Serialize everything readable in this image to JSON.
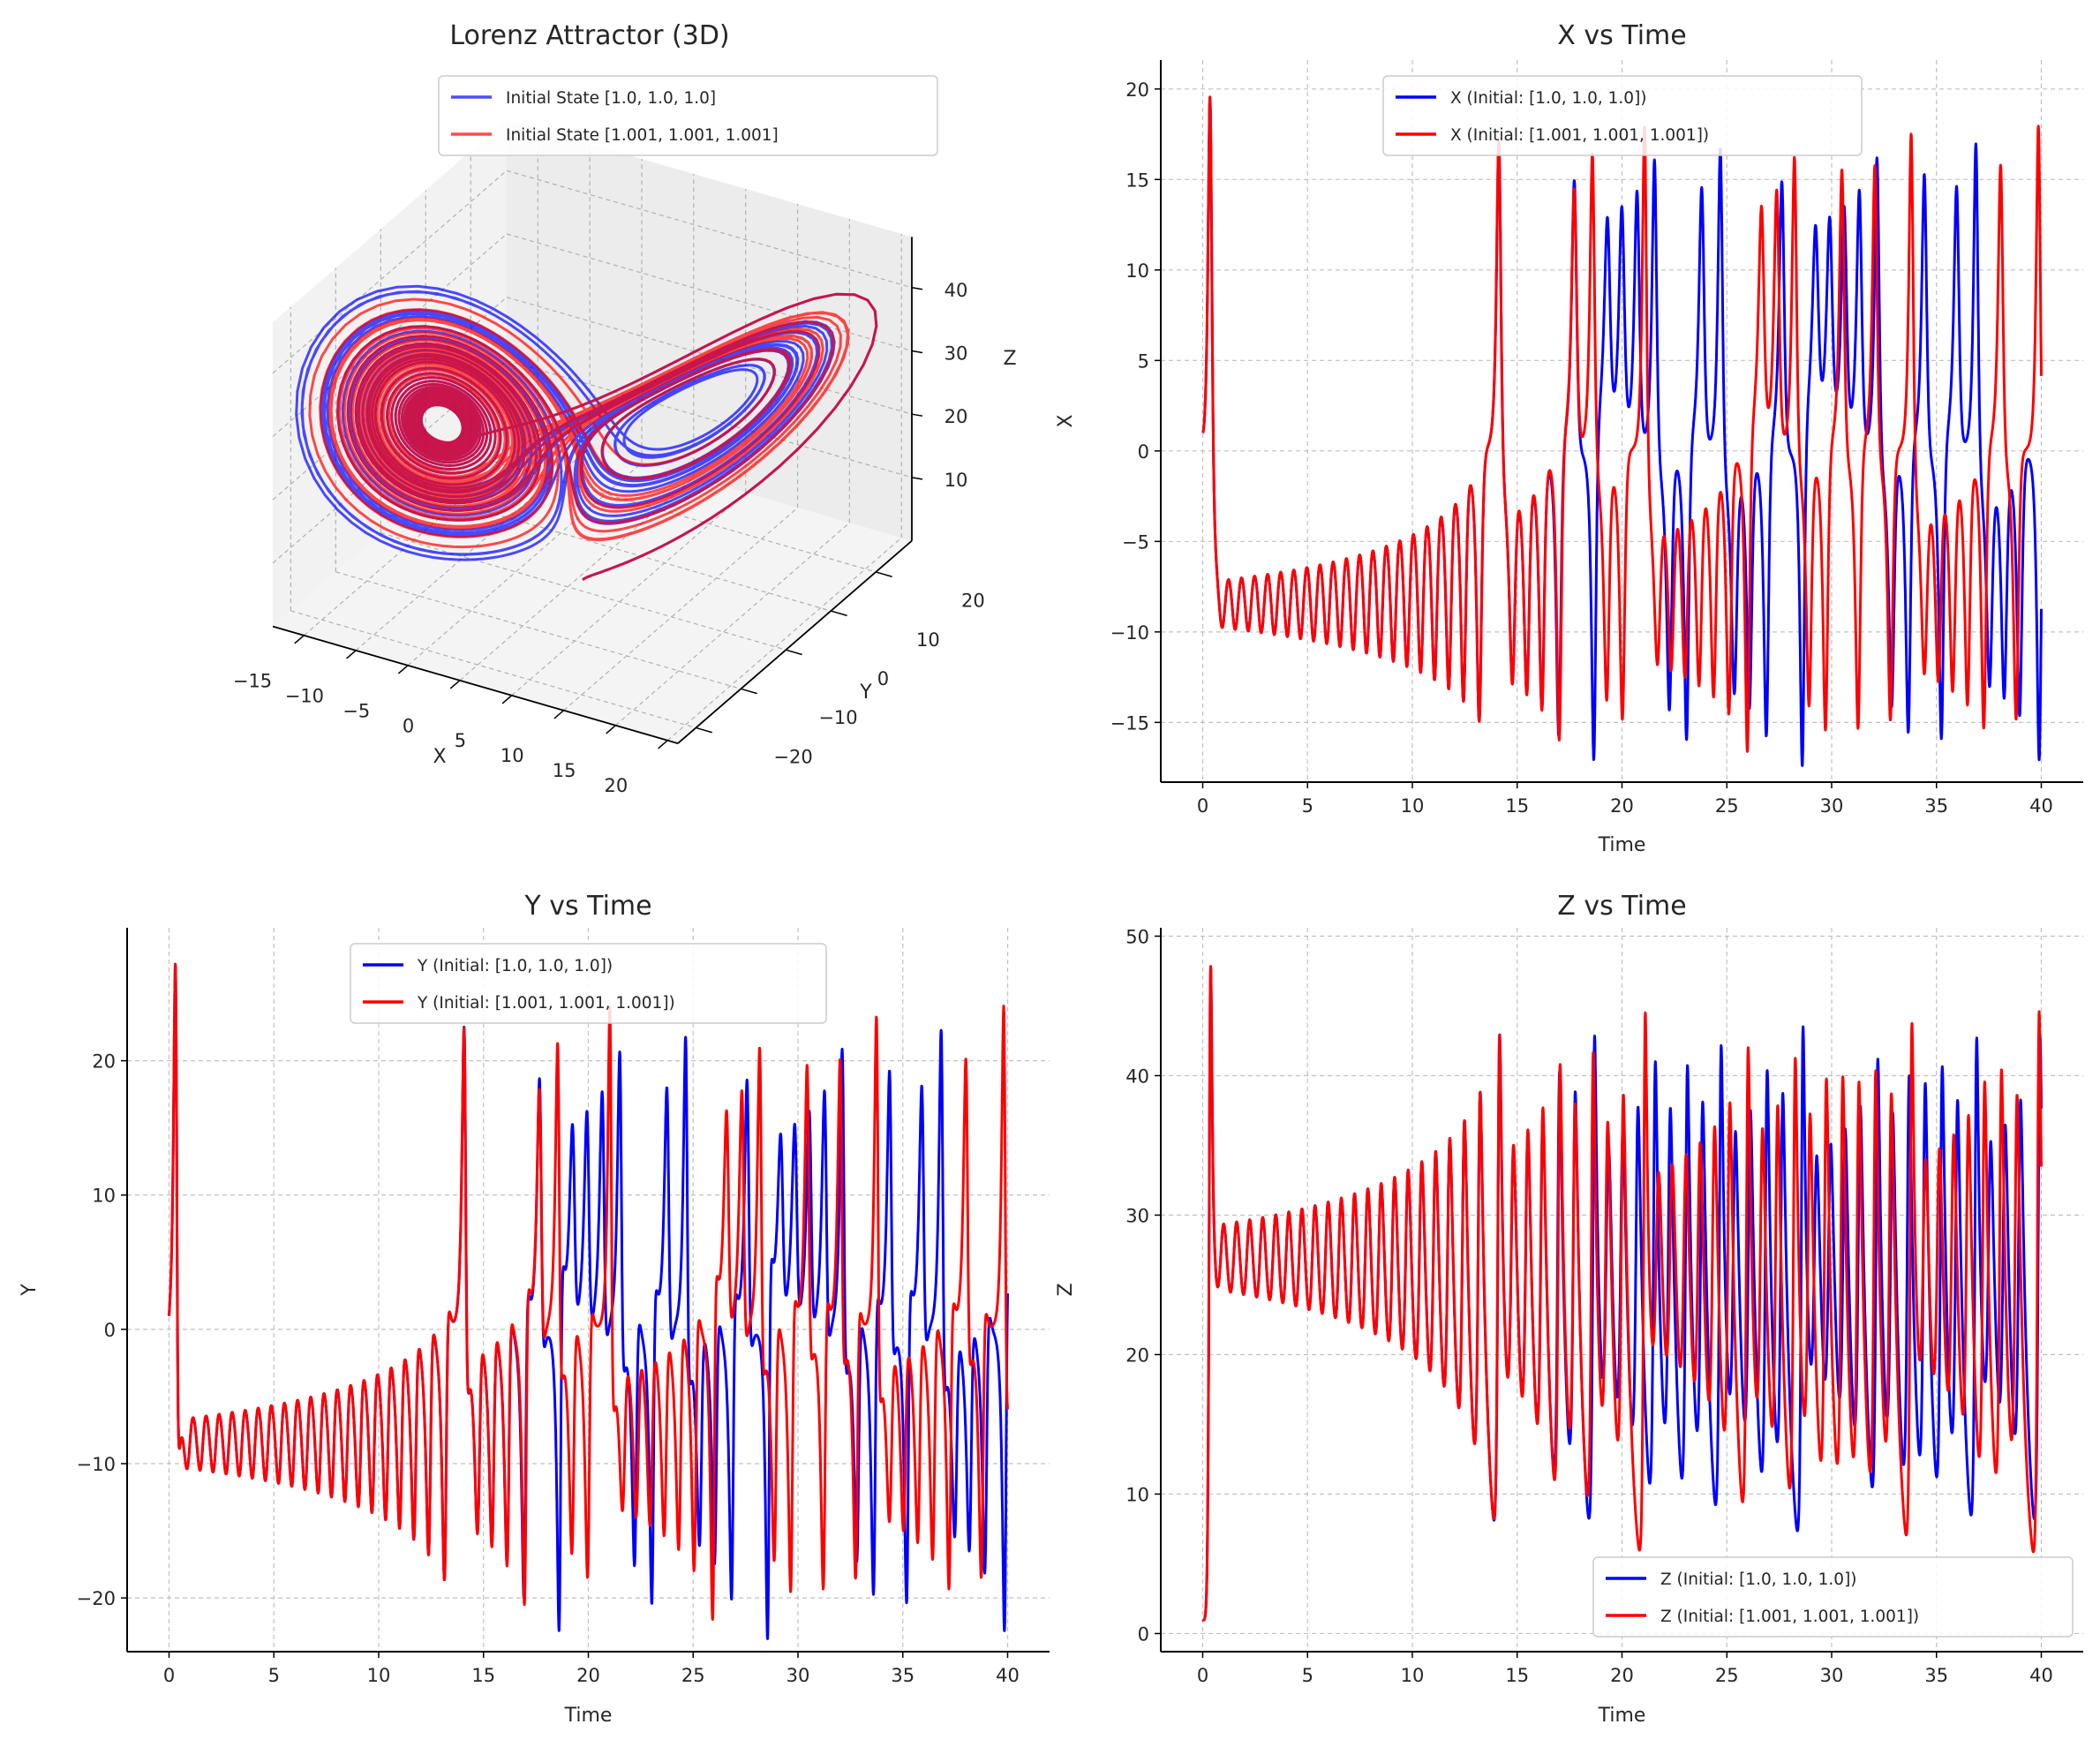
{
  "chart_data": [
    {
      "type": "line3d",
      "title": "Lorenz Attractor (3D)",
      "xlabel": "X",
      "ylabel": "Y",
      "zlabel": "Z",
      "xlim": [
        -18,
        21
      ],
      "ylim": [
        -24,
        28
      ],
      "zlim": [
        0,
        48
      ],
      "xticks": [
        -15,
        -10,
        -5,
        0,
        5,
        10,
        15,
        20
      ],
      "xtick_labels": [
        "−15",
        "−10",
        "−5",
        "0",
        "5",
        "10",
        "15",
        "20"
      ],
      "yticks": [
        -20,
        -10,
        0,
        10,
        20
      ],
      "ytick_labels": [
        "−20",
        "−10",
        "0",
        "10",
        "20"
      ],
      "zticks": [
        10,
        20,
        30,
        40
      ],
      "ztick_labels": [
        "10",
        "20",
        "30",
        "40"
      ],
      "grid": true,
      "legend": "upper right",
      "t_range": [
        0,
        40
      ],
      "series": [
        {
          "name": "Initial State [1.0, 1.0, 1.0]",
          "initial": [
            1.0,
            1.0,
            1.0
          ],
          "color": "#0000ff",
          "alpha": 0.7
        },
        {
          "name": "Initial State [1.001, 1.001, 1.001]",
          "initial": [
            1.001,
            1.001,
            1.001
          ],
          "color": "#ff0000",
          "alpha": 0.7
        }
      ]
    },
    {
      "type": "line",
      "title": "X vs Time",
      "xlabel": "Time",
      "ylabel": "X",
      "component": 0,
      "xlim": [
        -2,
        42
      ],
      "ylim": [
        -18.3,
        21.6
      ],
      "xticks": [
        0,
        5,
        10,
        15,
        20,
        25,
        30,
        35,
        40
      ],
      "xtick_labels": [
        "0",
        "5",
        "10",
        "15",
        "20",
        "25",
        "30",
        "35",
        "40"
      ],
      "yticks": [
        -15,
        -10,
        -5,
        0,
        5,
        10,
        15,
        20
      ],
      "ytick_labels": [
        "−15",
        "−10",
        "−5",
        "0",
        "5",
        "10",
        "15",
        "20"
      ],
      "grid": true,
      "legend": "upper center",
      "t_range": [
        0,
        40
      ],
      "series": [
        {
          "name": "X (Initial: [1.0, 1.0, 1.0])",
          "initial": [
            1.0,
            1.0,
            1.0
          ],
          "color": "#0000ff"
        },
        {
          "name": "X (Initial: [1.001, 1.001, 1.001])",
          "initial": [
            1.001,
            1.001,
            1.001
          ],
          "color": "#ff0000"
        }
      ]
    },
    {
      "type": "line",
      "title": "Y vs Time",
      "xlabel": "Time",
      "ylabel": "Y",
      "component": 1,
      "xlim": [
        -2,
        42
      ],
      "ylim": [
        -24.0,
        29.9
      ],
      "xticks": [
        0,
        5,
        10,
        15,
        20,
        25,
        30,
        35,
        40
      ],
      "xtick_labels": [
        "0",
        "5",
        "10",
        "15",
        "20",
        "25",
        "30",
        "35",
        "40"
      ],
      "yticks": [
        -20,
        -10,
        0,
        10,
        20
      ],
      "ytick_labels": [
        "−20",
        "−10",
        "0",
        "10",
        "20"
      ],
      "grid": true,
      "legend": "upper center",
      "t_range": [
        0,
        40
      ],
      "series": [
        {
          "name": "Y (Initial: [1.0, 1.0, 1.0])",
          "initial": [
            1.0,
            1.0,
            1.0
          ],
          "color": "#0000ff"
        },
        {
          "name": "Y (Initial: [1.001, 1.001, 1.001])",
          "initial": [
            1.001,
            1.001,
            1.001
          ],
          "color": "#ff0000"
        }
      ]
    },
    {
      "type": "line",
      "title": "Z vs Time",
      "xlabel": "Time",
      "ylabel": "Z",
      "component": 2,
      "xlim": [
        -2,
        42
      ],
      "ylim": [
        -1.3,
        50.6
      ],
      "xticks": [
        0,
        5,
        10,
        15,
        20,
        25,
        30,
        35,
        40
      ],
      "xtick_labels": [
        "0",
        "5",
        "10",
        "15",
        "20",
        "25",
        "30",
        "35",
        "40"
      ],
      "yticks": [
        0,
        10,
        20,
        30,
        40,
        50
      ],
      "ytick_labels": [
        "0",
        "10",
        "20",
        "30",
        "40",
        "50"
      ],
      "grid": true,
      "legend": "lower right",
      "t_range": [
        0,
        40
      ],
      "series": [
        {
          "name": "Z (Initial: [1.0, 1.0, 1.0])",
          "initial": [
            1.0,
            1.0,
            1.0
          ],
          "color": "#0000ff"
        },
        {
          "name": "Z (Initial: [1.001, 1.001, 1.001])",
          "initial": [
            1.001,
            1.001,
            1.001
          ],
          "color": "#ff0000"
        }
      ]
    }
  ]
}
